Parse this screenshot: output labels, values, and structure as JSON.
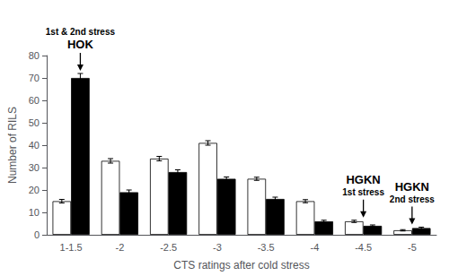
{
  "chart_data": {
    "type": "bar",
    "xlabel": "CTS ratings after cold stress",
    "ylabel": "Number of RILS",
    "categories": [
      "1-1.5",
      "-2",
      "-2.5",
      "-3",
      "-3.5",
      "-4",
      "-4.5",
      "-5"
    ],
    "series": [
      {
        "color": "#ffffff",
        "values": [
          15.0,
          33.0,
          34.0,
          41.0,
          25.0,
          15.0,
          6.0,
          2.0
        ],
        "errors": [
          0.8,
          1.0,
          1.0,
          1.0,
          0.7,
          0.7,
          0.5,
          0.3
        ]
      },
      {
        "color": "#000000",
        "values": [
          70.0,
          19.0,
          28.0,
          25.0,
          16.0,
          6.0,
          4.0,
          3.0
        ],
        "errors": [
          2.0,
          1.0,
          1.0,
          0.8,
          0.8,
          0.5,
          0.4,
          0.4
        ]
      }
    ],
    "ylim": [
      0,
      80
    ],
    "yticks": [
      0,
      10,
      20,
      30,
      40,
      50,
      60,
      70,
      80
    ],
    "grid": false,
    "annotations": [
      {
        "category": "1-1.5",
        "series": 1,
        "lines": [
          "1st & 2nd stress",
          "HOK"
        ]
      },
      {
        "category": "-4.5",
        "lines": [
          "HGKN",
          "1st stress"
        ]
      },
      {
        "category": "-5",
        "lines": [
          "HGKN",
          "2nd stress"
        ]
      }
    ]
  }
}
